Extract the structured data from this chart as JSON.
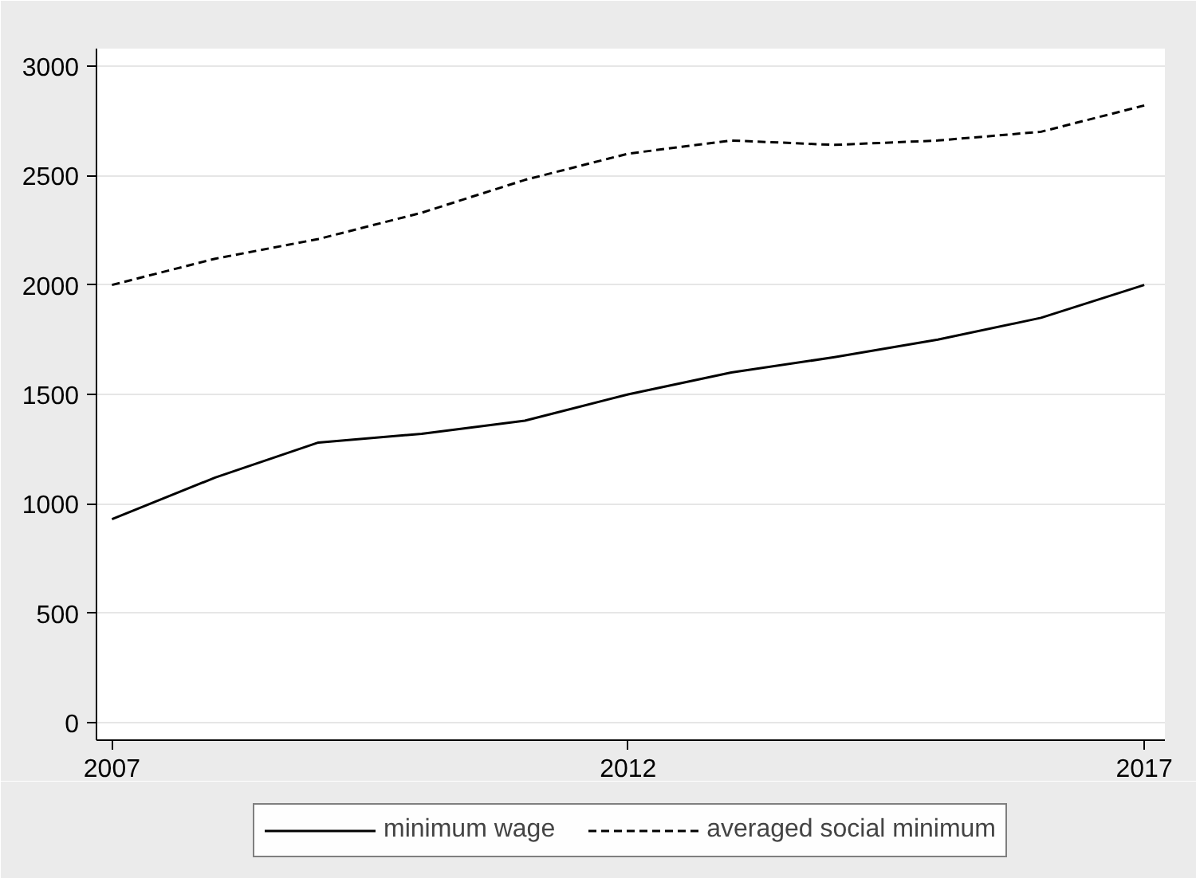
{
  "chart_data": {
    "type": "line",
    "x": [
      2007,
      2008,
      2009,
      2010,
      2011,
      2012,
      2013,
      2014,
      2015,
      2016,
      2017
    ],
    "series": [
      {
        "name": "minimum wage",
        "color": "#000000",
        "line_style": "solid",
        "values": [
          930,
          1120,
          1280,
          1320,
          1380,
          1500,
          1600,
          1670,
          1750,
          1850,
          2000
        ]
      },
      {
        "name": "averaged social minimum",
        "color": "#000000",
        "line_style": "dashed",
        "values": [
          2000,
          2120,
          2210,
          2330,
          2480,
          2600,
          2660,
          2640,
          2660,
          2700,
          2820
        ]
      }
    ],
    "xlim": [
      2006.85,
      2017.2
    ],
    "xticks": [
      2007,
      2012,
      2017
    ],
    "ylim": [
      -80,
      3080
    ],
    "yticks": [
      0,
      500,
      1000,
      1500,
      2000,
      2500,
      3000
    ],
    "grid": "y",
    "legend": "bottom",
    "marker": "none"
  }
}
